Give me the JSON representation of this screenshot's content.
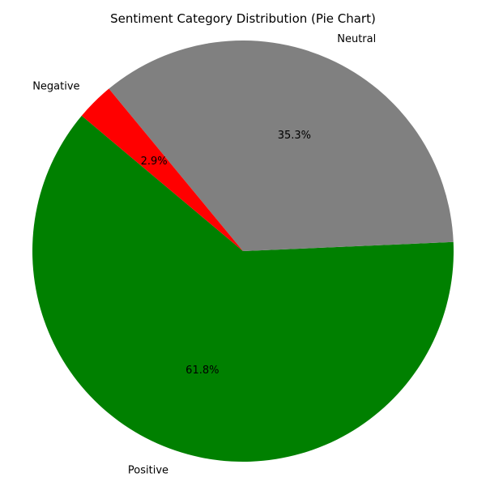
{
  "chart_data": {
    "type": "pie",
    "title": "Sentiment Category Distribution (Pie Chart)",
    "slices": [
      {
        "label": "Positive",
        "value": 61.8,
        "percent_label": "61.8%",
        "color": "#008000"
      },
      {
        "label": "Neutral",
        "value": 35.3,
        "percent_label": "35.3%",
        "color": "#808080"
      },
      {
        "label": "Negative",
        "value": 2.9,
        "percent_label": "2.9%",
        "color": "#ff0000"
      }
    ],
    "start_angle_deg": 140,
    "direction": "counterclockwise",
    "legend": "none"
  }
}
